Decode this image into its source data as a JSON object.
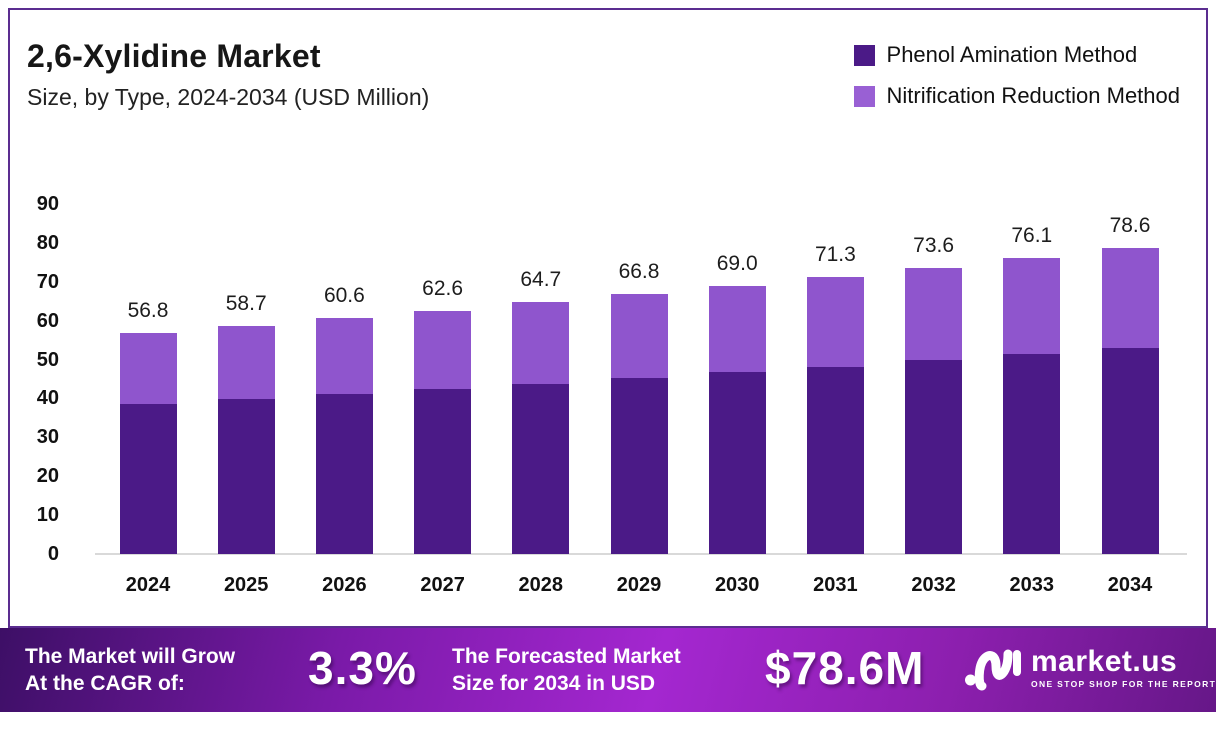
{
  "header": {
    "title": "2,6-Xylidine Market",
    "subtitle": "Size, by Type, 2024-2034 (USD Million)"
  },
  "legend": [
    {
      "label": "Phenol Amination Method",
      "color": "#4b1a87"
    },
    {
      "label": "Nitrification Reduction Method",
      "color": "#9960d4"
    }
  ],
  "chart_data": {
    "type": "bar",
    "stacked": true,
    "categories": [
      "2024",
      "2025",
      "2026",
      "2027",
      "2028",
      "2029",
      "2030",
      "2031",
      "2032",
      "2033",
      "2034"
    ],
    "series": [
      {
        "name": "Phenol Amination Method",
        "color": "#4b1a87",
        "values": [
          38.5,
          39.8,
          41.1,
          42.4,
          43.8,
          45.2,
          46.7,
          48.2,
          49.8,
          51.4,
          53.0
        ]
      },
      {
        "name": "Nitrification Reduction Method",
        "color": "#8f55cd",
        "values": [
          18.3,
          18.9,
          19.5,
          20.2,
          20.9,
          21.6,
          22.3,
          23.1,
          23.8,
          24.7,
          25.6
        ]
      }
    ],
    "totals": [
      56.8,
      58.7,
      60.6,
      62.6,
      64.7,
      66.8,
      69.0,
      71.3,
      73.6,
      76.1,
      78.6
    ],
    "total_labels": [
      "56.8",
      "58.7",
      "60.6",
      "62.6",
      "64.7",
      "66.8",
      "69.0",
      "71.3",
      "73.6",
      "76.1",
      "78.6"
    ],
    "title": "2,6-Xylidine Market Size, by Type, 2024-2034 (USD Million)",
    "xlabel": "",
    "ylabel": "",
    "ylim": [
      0,
      90
    ],
    "yticks": [
      0,
      10,
      20,
      30,
      40,
      50,
      60,
      70,
      80,
      90
    ],
    "grid": false,
    "legend_position": "top-right"
  },
  "banner": {
    "cagr_line1": "The Market will Grow",
    "cagr_line2": "At the CAGR of:",
    "cagr_value": "3.3%",
    "forecast_line1": "The Forecasted Market",
    "forecast_line2": "Size for 2034 in USD",
    "forecast_value": "$78.6M",
    "brand_name": "market.us",
    "brand_tagline": "ONE STOP SHOP FOR THE REPORTS"
  },
  "colors": {
    "frame_border": "#5b2d90",
    "series_dark": "#4b1a87",
    "series_light": "#8f55cd",
    "baseline": "#d9d9d9",
    "banner_gradient_start": "#3d0f66",
    "banner_gradient_mid": "#a427d0",
    "banner_gradient_end": "#661788",
    "text_dark": "#111111",
    "text_light": "#ffffff"
  }
}
